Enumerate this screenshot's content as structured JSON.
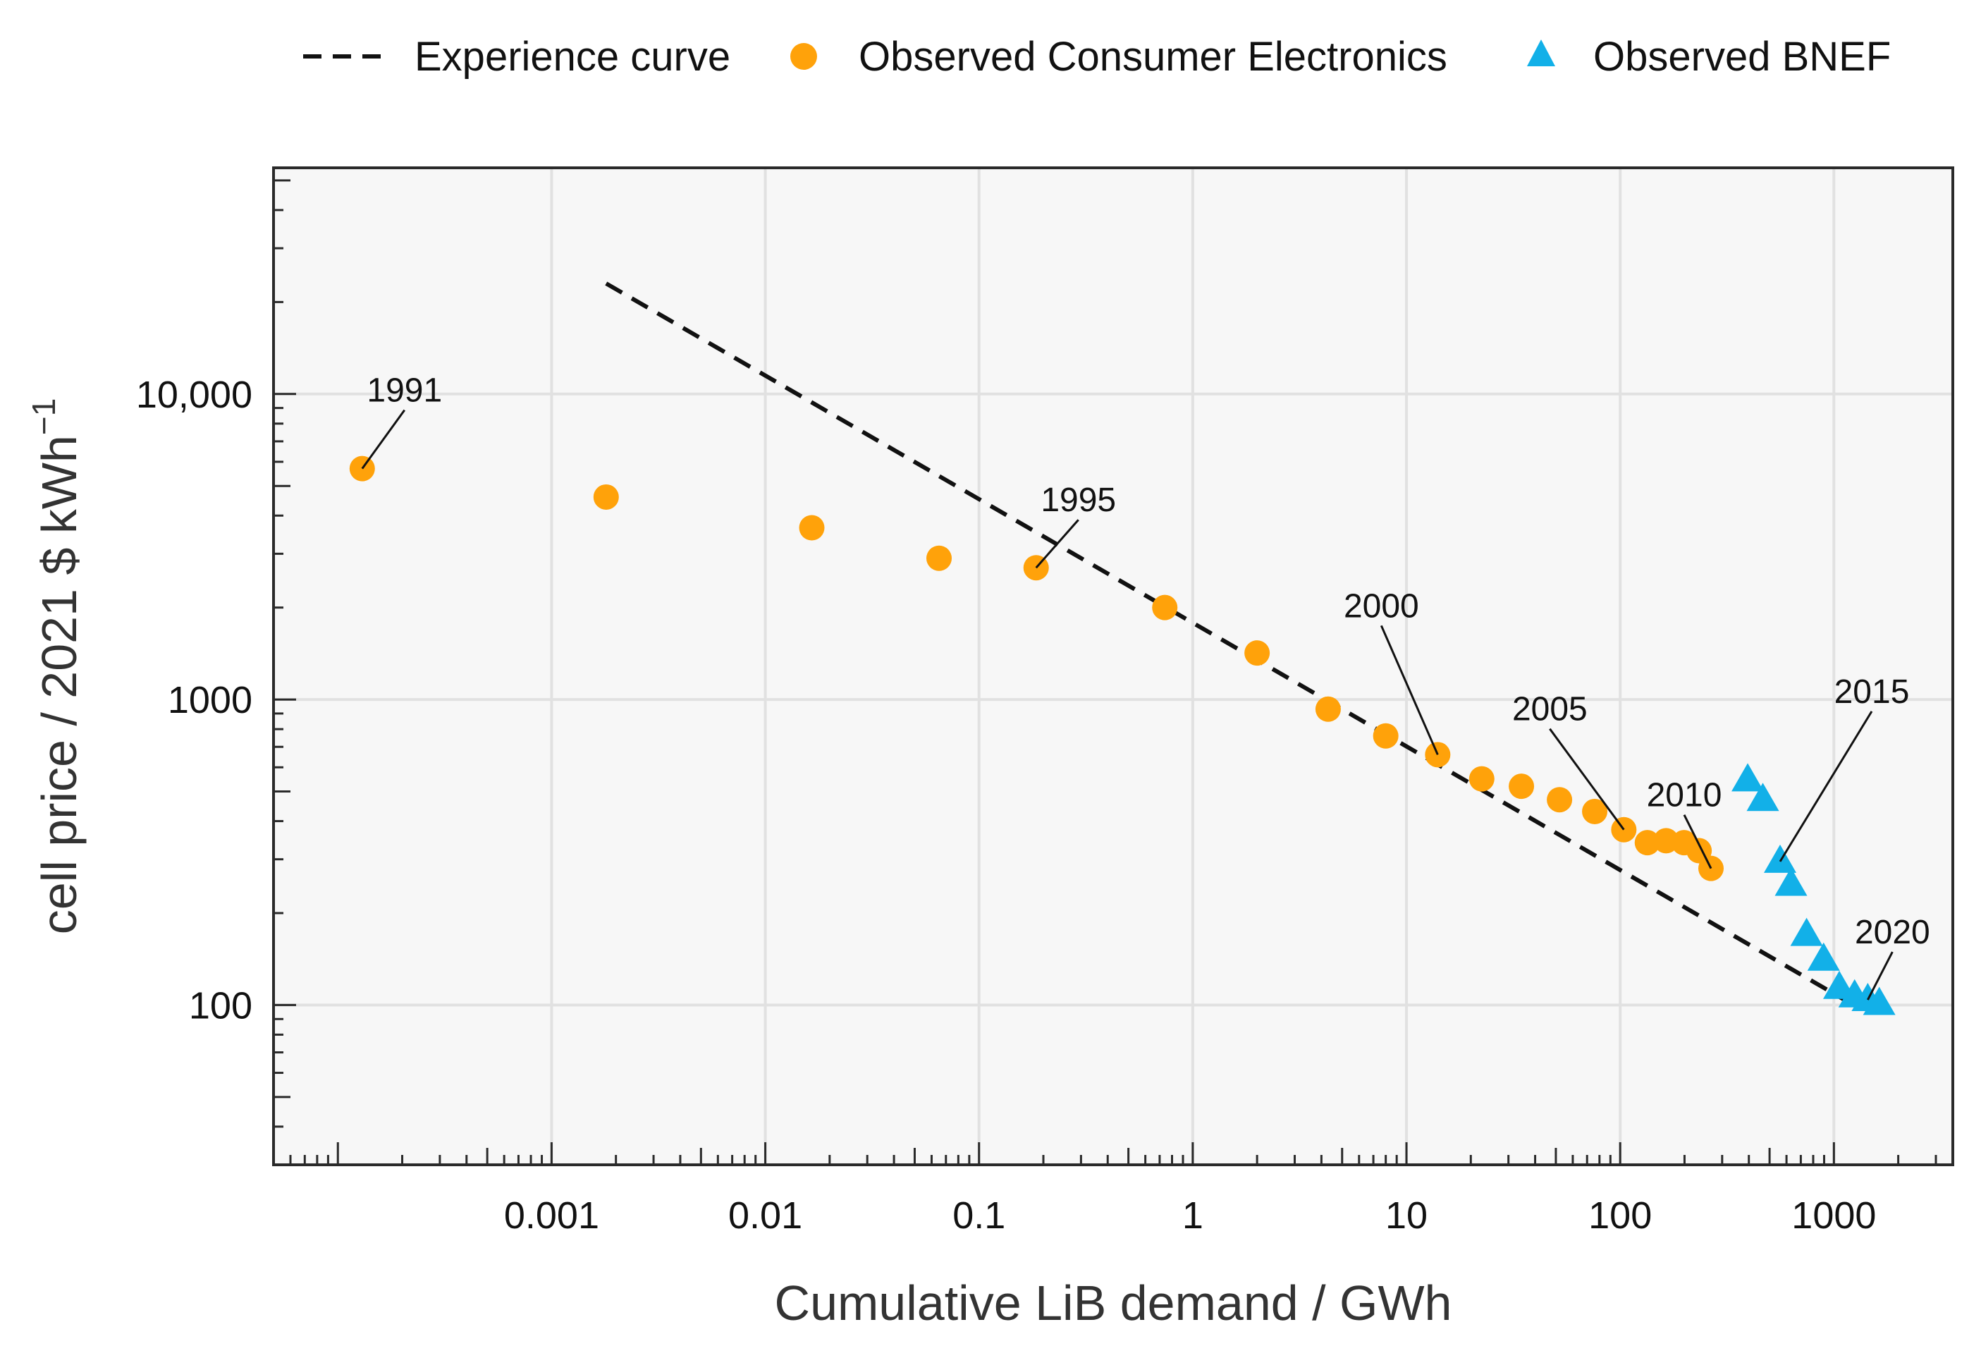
{
  "chart_data": {
    "type": "scatter",
    "title": "",
    "xlabel": "Cumulative LiB demand / GWh",
    "ylabel": "cell price / 2021 $ kWh",
    "ylabel_superscript": "−1",
    "x_scale": "log",
    "y_scale": "log",
    "xlim": [
      5e-05,
      3600
    ],
    "ylim": [
      30,
      55000
    ],
    "grid": true,
    "legend_position": "top",
    "colors": {
      "experience_curve": "#111111",
      "consumer_electronics": "#ffa20a",
      "bnef": "#12b0e8",
      "panel_bg": "#f7f7f7",
      "grid": "#e1e1e1"
    },
    "x_ticks": [
      {
        "value": 0.001,
        "label": "0.001"
      },
      {
        "value": 0.01,
        "label": "0.01"
      },
      {
        "value": 0.1,
        "label": "0.1"
      },
      {
        "value": 1,
        "label": "1"
      },
      {
        "value": 10,
        "label": "10"
      },
      {
        "value": 100,
        "label": "100"
      },
      {
        "value": 1000,
        "label": "1000"
      }
    ],
    "y_ticks": [
      {
        "value": 100,
        "label": "100"
      },
      {
        "value": 1000,
        "label": "1000"
      },
      {
        "value": 10000,
        "label": "10,000"
      }
    ],
    "legend": [
      {
        "key": "experience_curve",
        "label": "Experience curve",
        "marker": "dashed-line"
      },
      {
        "key": "consumer_electronics",
        "label": "Observed Consumer Electronics",
        "marker": "circle"
      },
      {
        "key": "bnef",
        "label": "Observed BNEF",
        "marker": "triangle"
      }
    ],
    "series": [
      {
        "name": "Experience curve",
        "kind": "line",
        "x": [
          0.0018,
          1300
        ],
        "y": [
          23000,
          98
        ]
      },
      {
        "name": "Observed Consumer Electronics",
        "kind": "scatter",
        "x": [
          0.00013,
          0.0018,
          0.0165,
          0.065,
          0.185,
          0.74,
          2.0,
          4.3,
          8.0,
          14.0,
          22.5,
          34.5,
          52.0,
          76.0,
          104.0,
          134.0,
          164.0,
          199.0,
          234.0,
          266.0
        ],
        "y": [
          5700,
          4600,
          3650,
          2900,
          2700,
          2000,
          1420,
          930,
          760,
          660,
          550,
          520,
          470,
          430,
          375,
          340,
          345,
          340,
          320,
          280
        ]
      },
      {
        "name": "Observed BNEF",
        "kind": "scatter",
        "x": [
          395,
          465,
          560,
          630,
          745,
          895,
          1060,
          1250,
          1440,
          1630
        ],
        "y": [
          545,
          470,
          295,
          248,
          170,
          141,
          114,
          107,
          104,
          101
        ]
      }
    ],
    "annotations": [
      {
        "text": "1991",
        "x": 0.00013,
        "y": 5700
      },
      {
        "text": "1995",
        "x": 0.185,
        "y": 2700
      },
      {
        "text": "2000",
        "x": 14.0,
        "y": 660
      },
      {
        "text": "2005",
        "x": 104.0,
        "y": 375
      },
      {
        "text": "2010",
        "x": 266.0,
        "y": 280
      },
      {
        "text": "2015",
        "x": 560,
        "y": 295
      },
      {
        "text": "2020",
        "x": 1440,
        "y": 104
      }
    ]
  }
}
